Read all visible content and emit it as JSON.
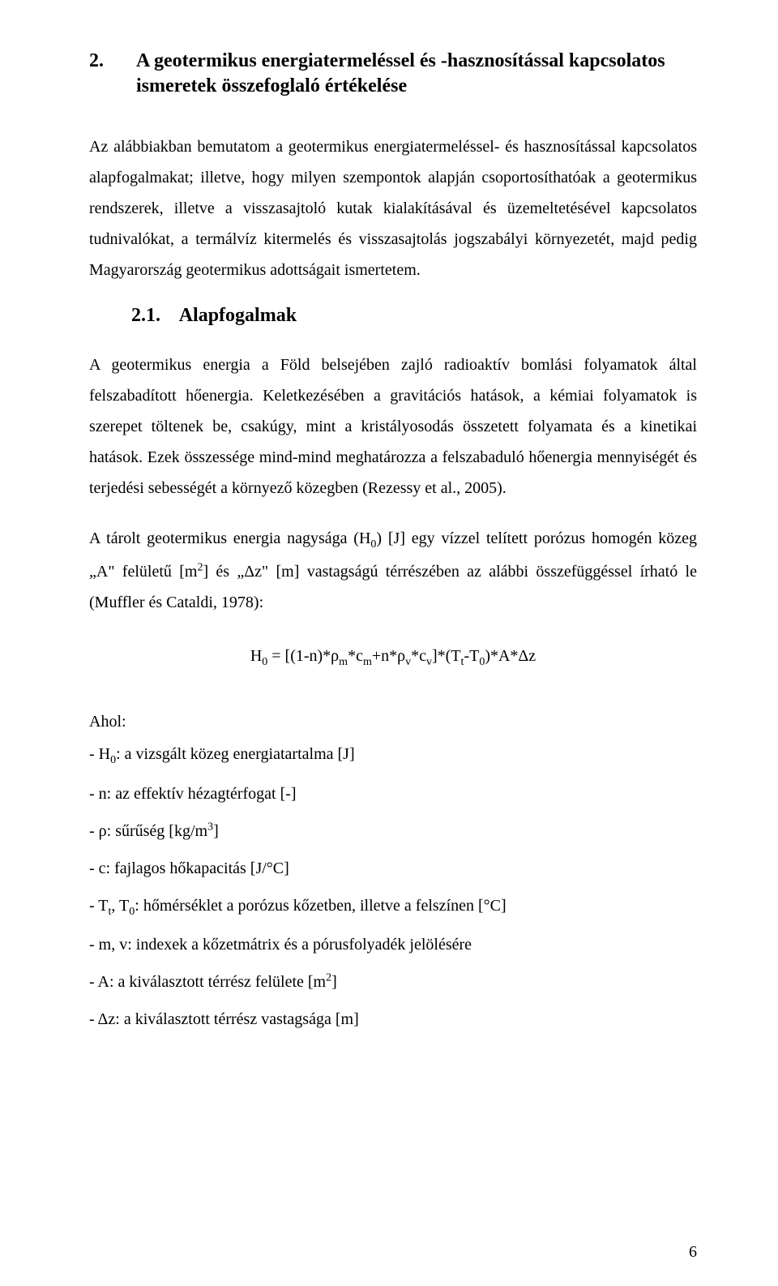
{
  "section": {
    "number": "2.",
    "title": "A geotermikus energiatermeléssel és -hasznosítással kapcsolatos ismeretek összefoglaló értékelése"
  },
  "intro_para": "Az alábbiakban bemutatom a geotermikus energiatermeléssel- és hasznosítással kapcsolatos alapfogalmakat; illetve, hogy milyen szempontok alapján csoportosíthatóak a geotermikus rendszerek, illetve a visszasajtoló kutak kialakításával és üzemeltetésével kapcsolatos tudnivalókat, a termálvíz kitermelés és visszasajtolás jogszabályi környezetét, majd pedig Magyarország geotermikus adottságait ismertetem.",
  "subsection": {
    "number": "2.1.",
    "title": "Alapfogalmak"
  },
  "body_para_1": "A geotermikus energia a Föld belsejében zajló radioaktív bomlási folyamatok által felszabadított hőenergia. Keletkezésében a gravitációs hatások, a kémiai folyamatok is szerepet töltenek be, csakúgy, mint a kristályosodás összetett folyamata és a kinetikai hatások. Ezek összessége mind-mind meghatározza a felszabaduló hőenergia mennyiségét és terjedési sebességét a környező közegben (Rezessy et al., 2005).",
  "body_para_2_pre": "A tárolt geotermikus energia nagysága (H",
  "body_para_2_sub": "0",
  "body_para_2_mid1": ") [J] egy vízzel telített porózus homogén közeg „A\" felületű [m",
  "body_para_2_sup": "2",
  "body_para_2_mid2": "] és „Δz\" [m] vastagságú térrészében az alábbi összefüggéssel írható le (Muffler és Cataldi, 1978):",
  "equation": {
    "lhs": "H",
    "lhs_sub": "0",
    "eq": " = [(1-n)*ρ",
    "m1": "m",
    "p2": "*c",
    "m2": "m",
    "p3": "+n*ρ",
    "v1": "v",
    "p4": "*c",
    "v2": "v",
    "p5": "]*(T",
    "t1": "t",
    "p6": "-T",
    "z1": "0",
    "p7": ")*A*Δz"
  },
  "where": "Ahol:",
  "defs": {
    "d1_pre": "- H",
    "d1_sub": "0",
    "d1_post": ": a vizsgált közeg energiatartalma [J]",
    "d2": "- n: az effektív hézagtérfogat [-]",
    "d3_pre": "- ρ: sűrűség [kg/m",
    "d3_sup": "3",
    "d3_post": "]",
    "d4": "- c: fajlagos hőkapacitás [J/°C]",
    "d5_pre": "- T",
    "d5_sub1": "t",
    "d5_mid": ", T",
    "d5_sub2": "0",
    "d5_post": ": hőmérséklet a porózus kőzetben, illetve a felszínen [°C]",
    "d6": "- m, v: indexek a kőzetmátrix és a pórusfolyadék jelölésére",
    "d7_pre": "- A: a kiválasztott térrész felülete [m",
    "d7_sup": "2",
    "d7_post": "]",
    "d8": "- Δz: a kiválasztott térrész vastagsága [m]"
  },
  "page_number": "6"
}
